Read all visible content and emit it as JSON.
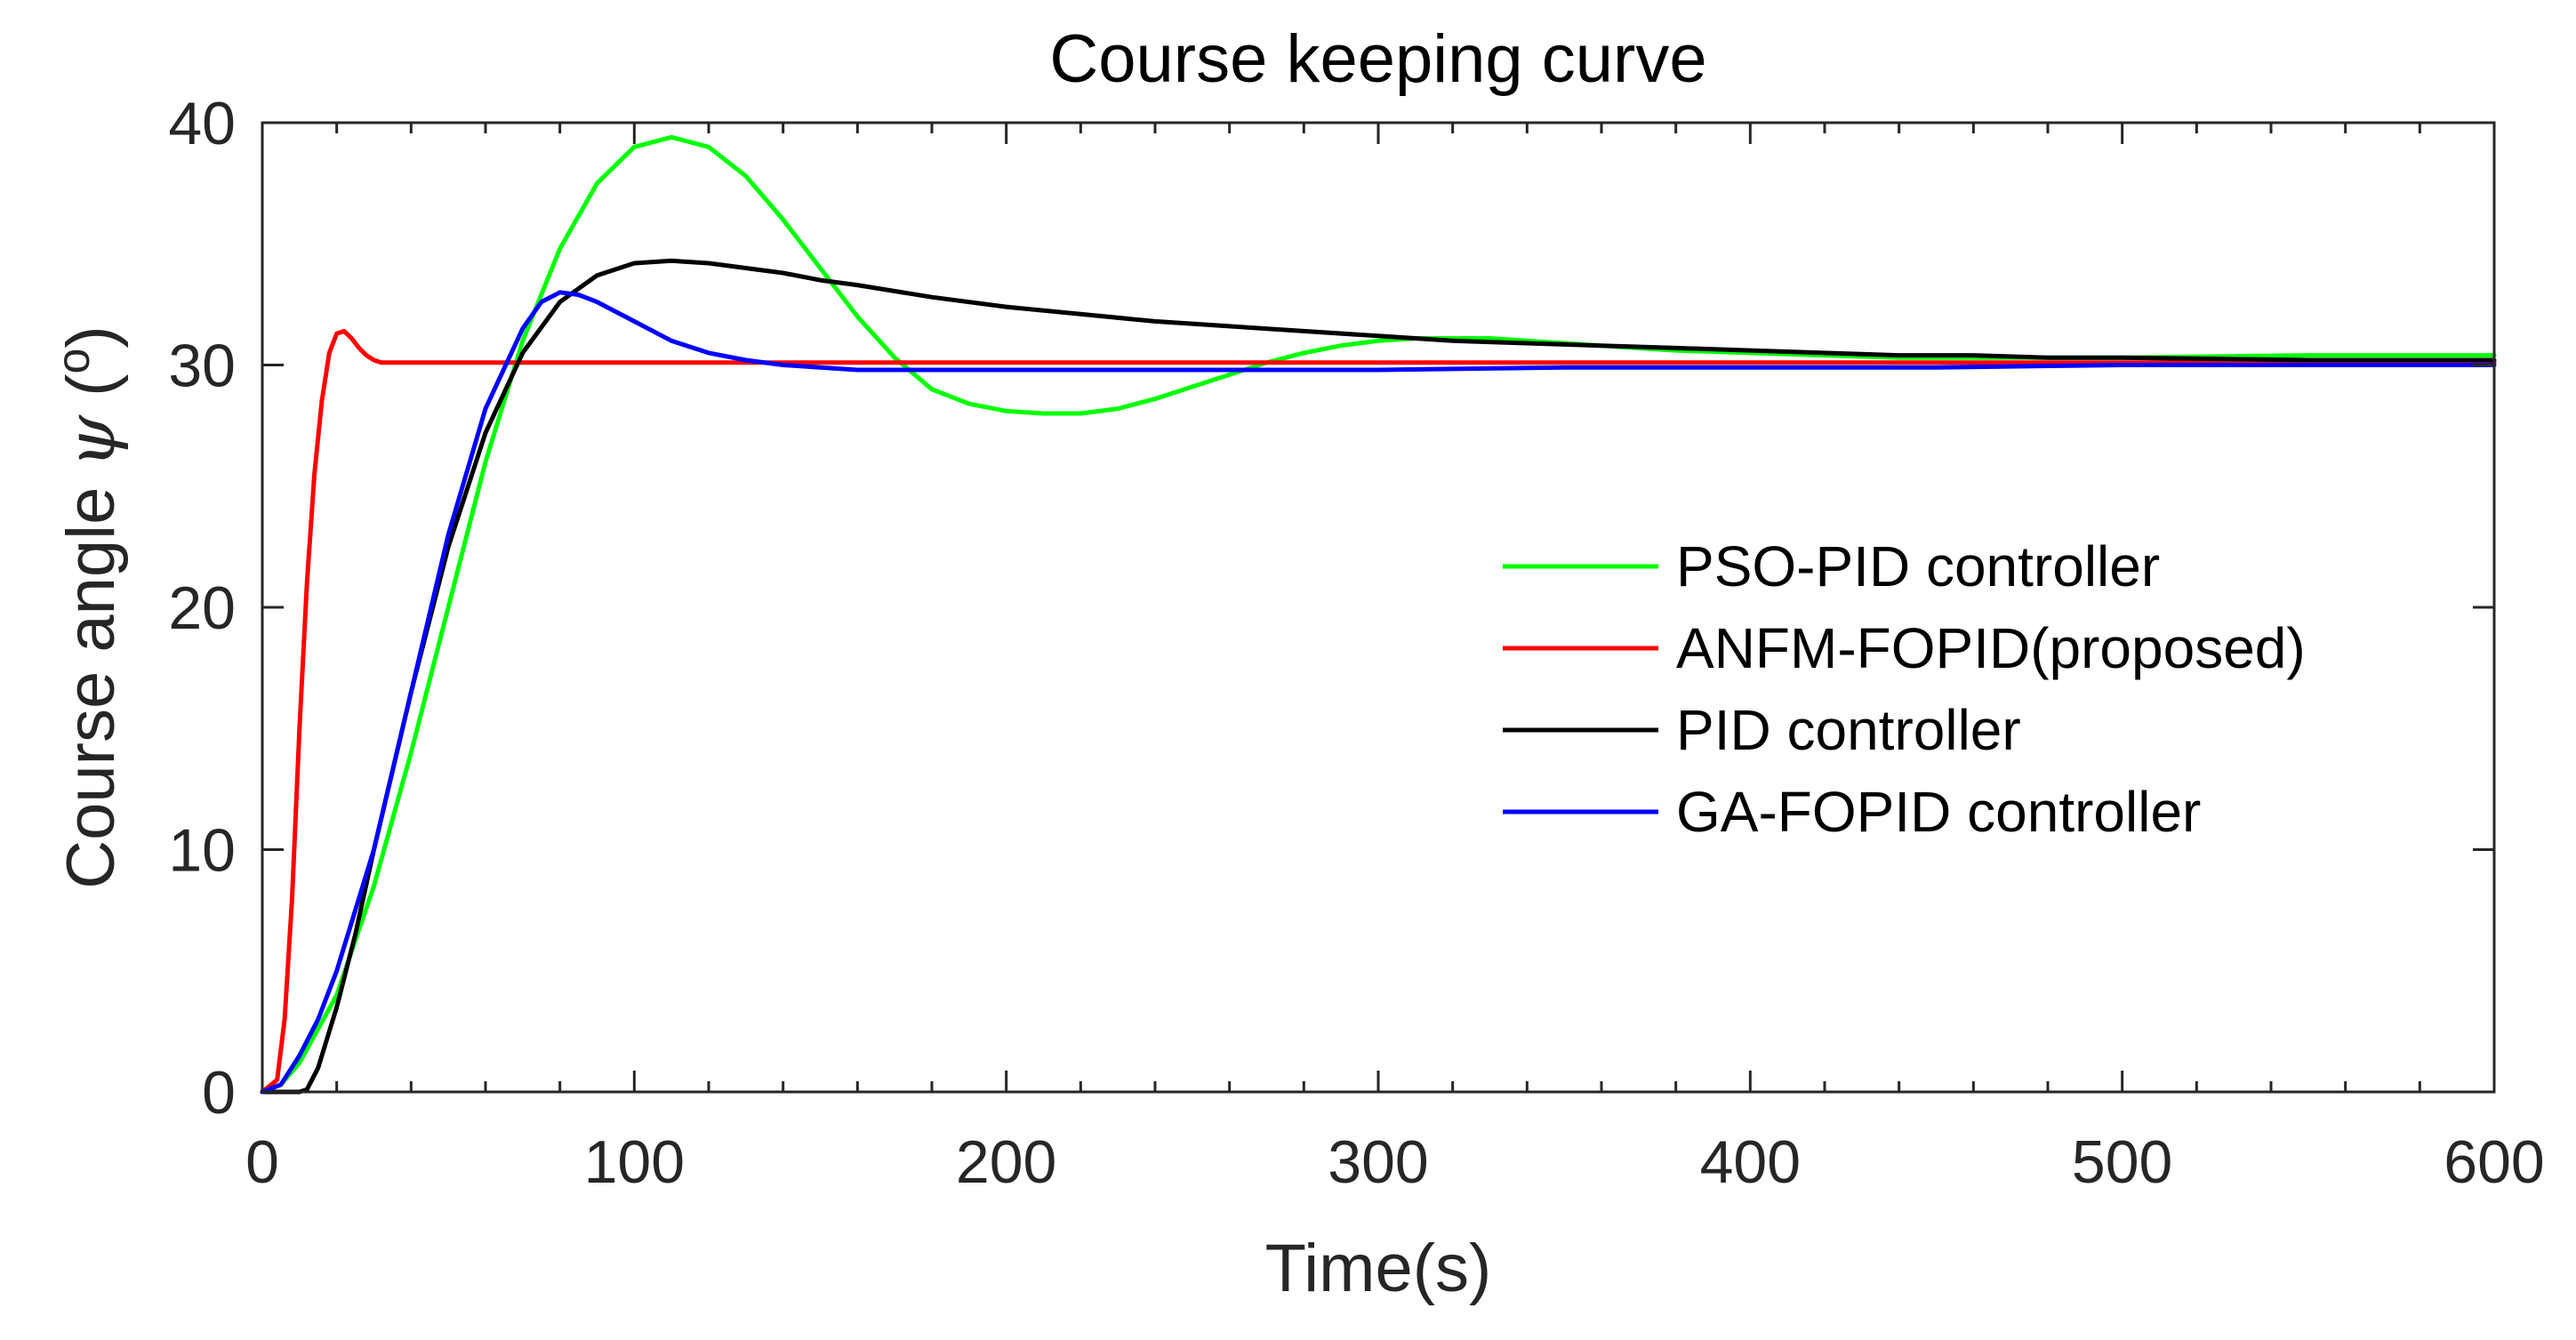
{
  "chart_data": {
    "type": "line",
    "title": "Course keeping curve",
    "xlabel": "Time(s)",
    "ylabel_prefix": "Course angle ",
    "ylabel_symbol": "ψ",
    "ylabel_open": " (",
    "ylabel_degree": "o",
    "ylabel_close": ")",
    "xlim": [
      0,
      600
    ],
    "ylim": [
      0,
      40
    ],
    "xticks": [
      0,
      100,
      200,
      300,
      400,
      500,
      600
    ],
    "yticks": [
      0,
      10,
      20,
      30,
      40
    ],
    "grid": false,
    "legend_position": "center-right",
    "series": [
      {
        "name": "PSO-PID controller",
        "color": "#00ff00",
        "x": [
          0,
          5,
          10,
          20,
          30,
          40,
          50,
          60,
          70,
          80,
          90,
          100,
          110,
          120,
          130,
          140,
          150,
          160,
          170,
          180,
          190,
          200,
          210,
          220,
          230,
          240,
          250,
          260,
          270,
          280,
          290,
          300,
          310,
          320,
          330,
          340,
          350,
          360,
          380,
          400,
          420,
          440,
          460,
          480,
          500,
          550,
          600
        ],
        "y": [
          0,
          0.3,
          1.2,
          4.0,
          8.5,
          14.0,
          20.0,
          26.0,
          31.0,
          34.8,
          37.5,
          39.0,
          39.4,
          39.0,
          37.8,
          36.0,
          34.0,
          32.0,
          30.3,
          29.0,
          28.4,
          28.1,
          28.0,
          28.0,
          28.2,
          28.6,
          29.1,
          29.6,
          30.1,
          30.5,
          30.8,
          31.0,
          31.1,
          31.1,
          31.1,
          31.0,
          30.9,
          30.8,
          30.6,
          30.5,
          30.4,
          30.3,
          30.3,
          30.3,
          30.3,
          30.4,
          30.4
        ]
      },
      {
        "name": "ANFM-FOPID(proposed)",
        "color": "#ff0000",
        "x": [
          0,
          4,
          6,
          8,
          10,
          12,
          14,
          16,
          18,
          20,
          22,
          24,
          26,
          28,
          30,
          32,
          35,
          40,
          60,
          100,
          200,
          300,
          400,
          500,
          600
        ],
        "y": [
          0,
          0.5,
          3,
          8,
          15,
          21,
          25.5,
          28.5,
          30.5,
          31.3,
          31.4,
          31.1,
          30.7,
          30.4,
          30.2,
          30.1,
          30.1,
          30.1,
          30.1,
          30.1,
          30.1,
          30.1,
          30.1,
          30.1,
          30.1
        ]
      },
      {
        "name": "PID controller",
        "color": "#000000",
        "x": [
          0,
          5,
          10,
          12,
          15,
          20,
          25,
          30,
          40,
          50,
          60,
          70,
          80,
          90,
          100,
          110,
          120,
          130,
          140,
          150,
          160,
          180,
          200,
          220,
          240,
          260,
          280,
          300,
          320,
          340,
          360,
          380,
          400,
          420,
          440,
          460,
          480,
          500,
          550,
          600
        ],
        "y": [
          0,
          0,
          0,
          0.1,
          1.0,
          3.5,
          6.5,
          10.0,
          16.5,
          22.5,
          27.2,
          30.5,
          32.6,
          33.7,
          34.2,
          34.3,
          34.2,
          34.0,
          33.8,
          33.5,
          33.3,
          32.8,
          32.4,
          32.1,
          31.8,
          31.6,
          31.4,
          31.2,
          31.0,
          30.9,
          30.8,
          30.7,
          30.6,
          30.5,
          30.4,
          30.4,
          30.3,
          30.3,
          30.2,
          30.2
        ]
      },
      {
        "name": "GA-FOPID controller",
        "color": "#0000ff",
        "x": [
          0,
          5,
          10,
          15,
          20,
          30,
          40,
          50,
          60,
          70,
          75,
          80,
          85,
          90,
          100,
          110,
          120,
          130,
          140,
          150,
          160,
          180,
          200,
          250,
          300,
          350,
          400,
          450,
          500,
          550,
          600
        ],
        "y": [
          0,
          0.3,
          1.5,
          3.0,
          5.0,
          10.0,
          16.5,
          23.0,
          28.2,
          31.5,
          32.6,
          33.0,
          32.9,
          32.6,
          31.8,
          31.0,
          30.5,
          30.2,
          30.0,
          29.9,
          29.8,
          29.8,
          29.8,
          29.8,
          29.8,
          29.9,
          29.9,
          29.9,
          30.0,
          30.0,
          30.0
        ]
      }
    ]
  }
}
